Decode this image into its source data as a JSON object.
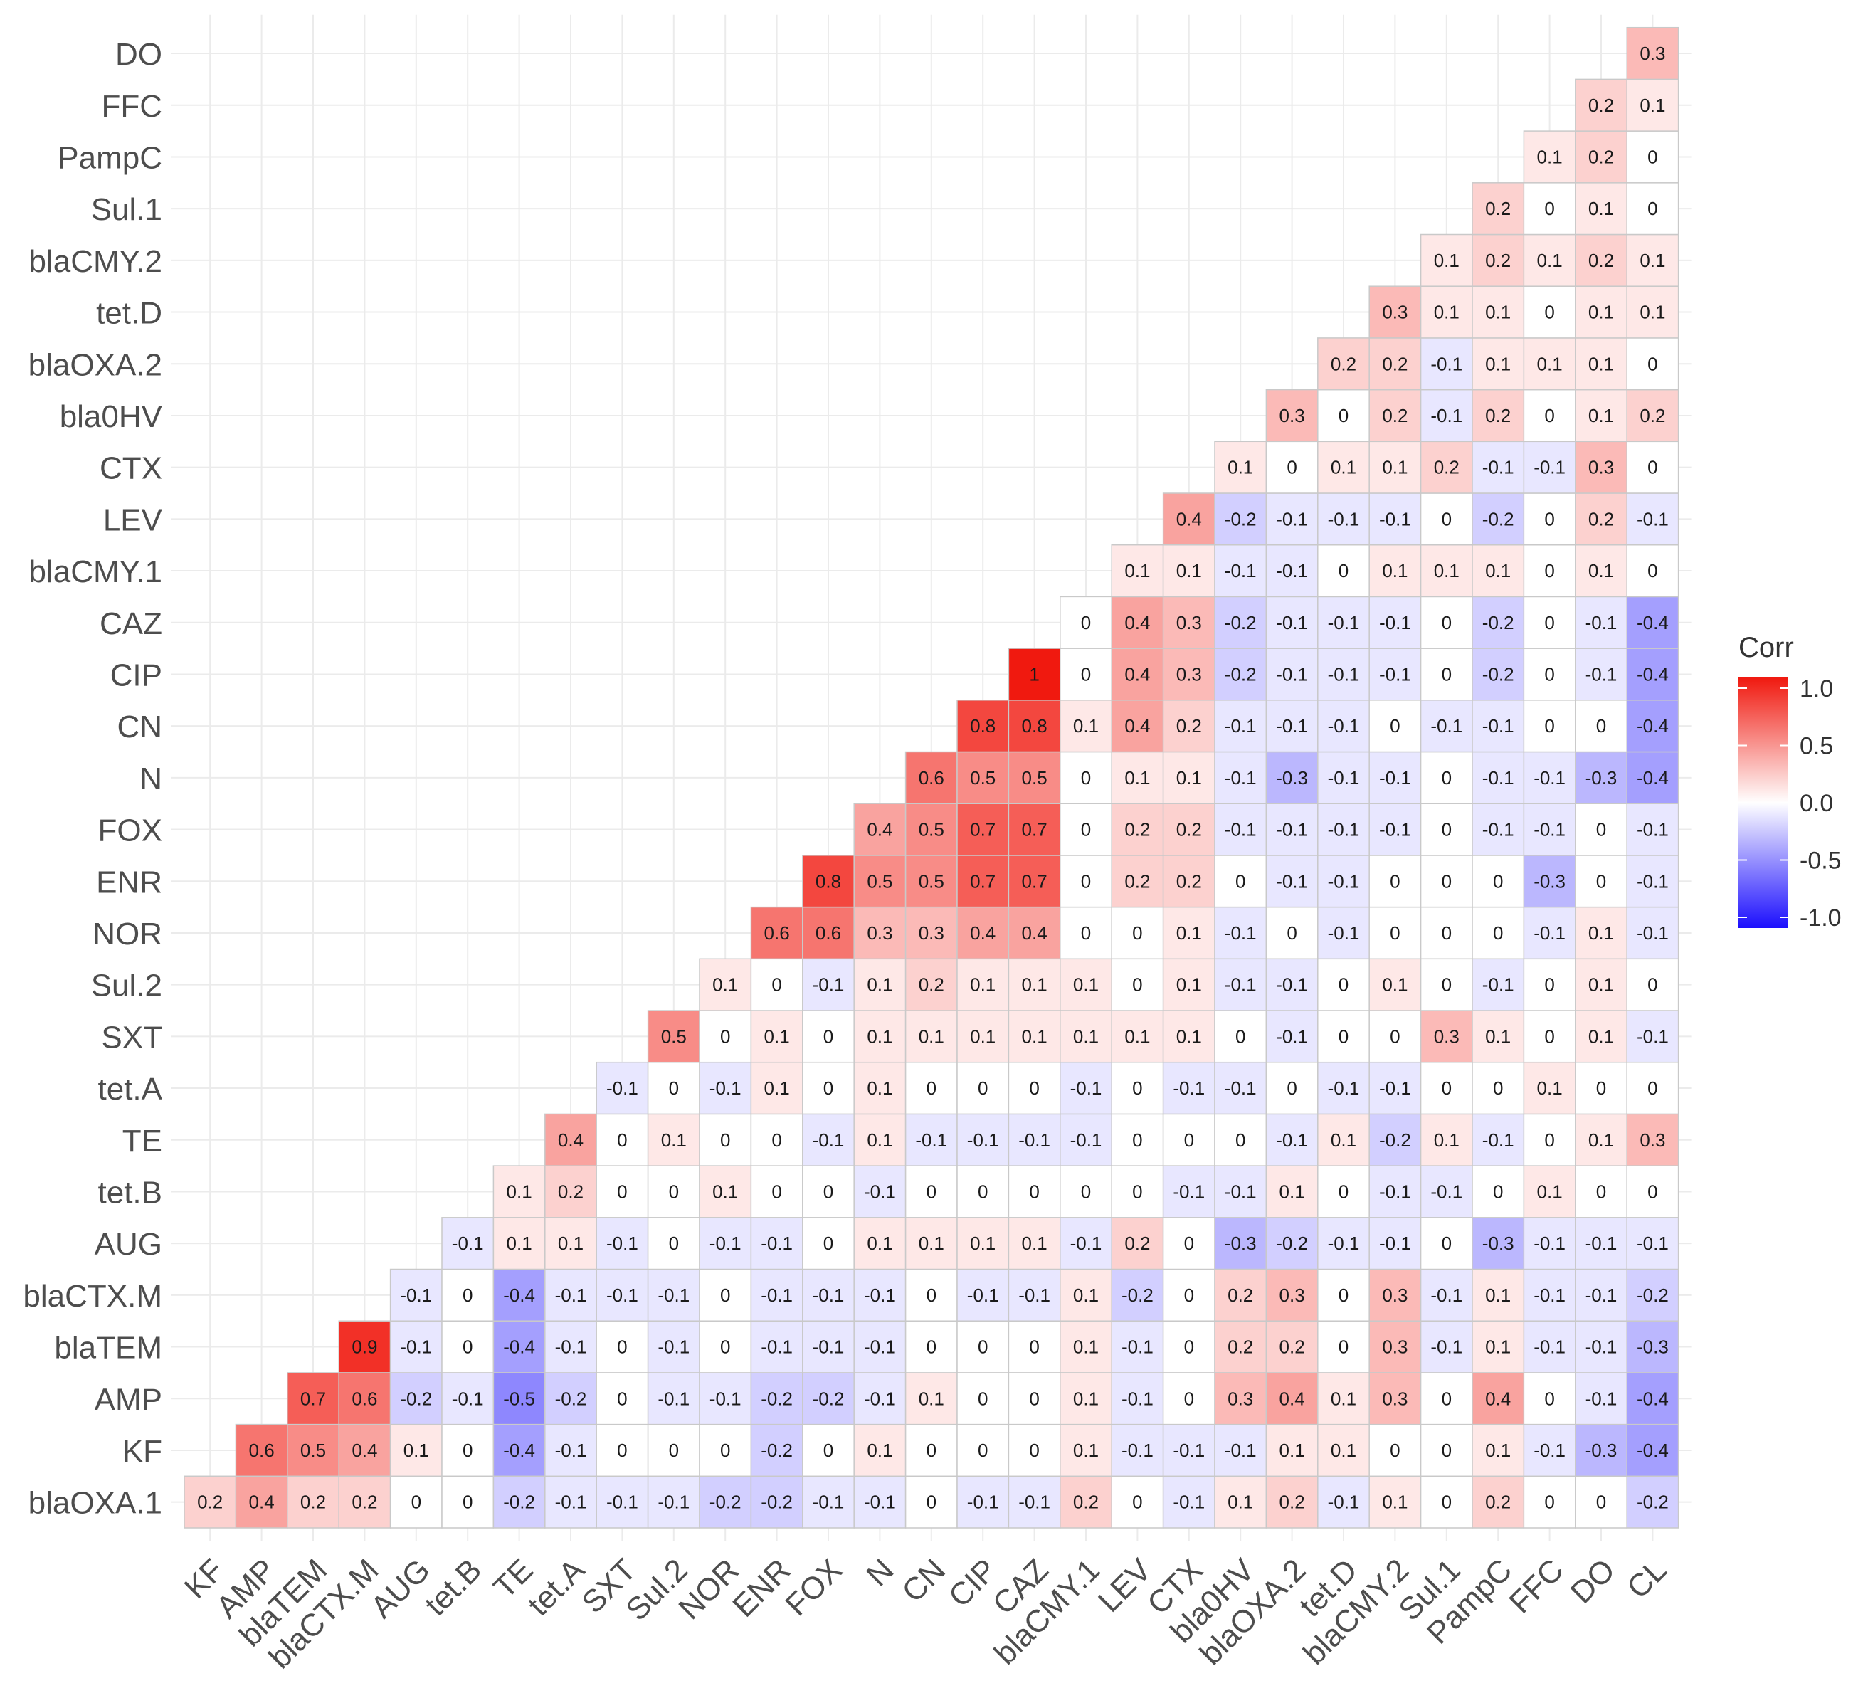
{
  "chart_data": {
    "type": "heatmap",
    "title": "",
    "xlabel": "",
    "ylabel": "",
    "x_labels": [
      "KF",
      "AMP",
      "blaTEM",
      "blaCTX.M",
      "AUG",
      "tet.B",
      "TE",
      "tet.A",
      "SXT",
      "Sul.2",
      "NOR",
      "ENR",
      "FOX",
      "N",
      "CN",
      "CIP",
      "CAZ",
      "blaCMY.1",
      "LEV",
      "CTX",
      "bla0HV",
      "blaOXA.2",
      "tet.D",
      "blaCMY.2",
      "Sul.1",
      "PampC",
      "FFC",
      "DO",
      "CL"
    ],
    "y_labels": [
      "blaOXA.1",
      "KF",
      "AMP",
      "blaTEM",
      "blaCTX.M",
      "AUG",
      "tet.B",
      "TE",
      "tet.A",
      "SXT",
      "Sul.2",
      "NOR",
      "ENR",
      "FOX",
      "N",
      "CN",
      "CIP",
      "CAZ",
      "blaCMY.1",
      "LEV",
      "CTX",
      "bla0HV",
      "blaOXA.2",
      "tet.D",
      "blaCMY.2",
      "Sul.1",
      "PampC",
      "FFC",
      "DO"
    ],
    "rows": [
      [
        "0.2",
        "0.4",
        "0.2",
        "0.2",
        "0",
        "0",
        "-0.2",
        "-0.1",
        "-0.1",
        "-0.1",
        "-0.2",
        "-0.2",
        "-0.1",
        "-0.1",
        "0",
        "-0.1",
        "-0.1",
        "0.2",
        "0",
        "-0.1",
        "0.1",
        "0.2",
        "-0.1",
        "0.1",
        "0",
        "0.2",
        "0",
        "0",
        "-0.2"
      ],
      [
        "0.6",
        "0.5",
        "0.4",
        "0.1",
        "0",
        "-0.4",
        "-0.1",
        "0",
        "0",
        "0",
        "-0.2",
        "0",
        "0.1",
        "0",
        "0",
        "0",
        "0.1",
        "-0.1",
        "-0.1",
        "-0.1",
        "0.1",
        "0.1",
        "0",
        "0",
        "0.1",
        "-0.1",
        "-0.3",
        "-0.4"
      ],
      [
        "0.7",
        "0.6",
        "-0.2",
        "-0.1",
        "-0.5",
        "-0.2",
        "0",
        "-0.1",
        "-0.1",
        "-0.2",
        "-0.2",
        "-0.1",
        "0.1",
        "0",
        "0",
        "0.1",
        "-0.1",
        "0",
        "0.3",
        "0.4",
        "0.1",
        "0.3",
        "0",
        "0.4",
        "0",
        "-0.1",
        "-0.4"
      ],
      [
        "0.9",
        "-0.1",
        "0",
        "-0.4",
        "-0.1",
        "0",
        "-0.1",
        "0",
        "-0.1",
        "-0.1",
        "-0.1",
        "0",
        "0",
        "0",
        "0.1",
        "-0.1",
        "0",
        "0.2",
        "0.2",
        "0",
        "0.3",
        "-0.1",
        "0.1",
        "-0.1",
        "-0.1",
        "-0.3"
      ],
      [
        "-0.1",
        "0",
        "-0.4",
        "-0.1",
        "-0.1",
        "-0.1",
        "0",
        "-0.1",
        "-0.1",
        "-0.1",
        "0",
        "-0.1",
        "-0.1",
        "0.1",
        "-0.2",
        "0",
        "0.2",
        "0.3",
        "0",
        "0.3",
        "-0.1",
        "0.1",
        "-0.1",
        "-0.1",
        "-0.2"
      ],
      [
        "-0.1",
        "0.1",
        "0.1",
        "-0.1",
        "0",
        "-0.1",
        "-0.1",
        "0",
        "0.1",
        "0.1",
        "0.1",
        "0.1",
        "-0.1",
        "0.2",
        "0",
        "-0.3",
        "-0.2",
        "-0.1",
        "-0.1",
        "0",
        "-0.3",
        "-0.1",
        "-0.1",
        "-0.1"
      ],
      [
        "0.1",
        "0.2",
        "0",
        "0",
        "0.1",
        "0",
        "0",
        "-0.1",
        "0",
        "0",
        "0",
        "0",
        "0",
        "-0.1",
        "-0.1",
        "0.1",
        "0",
        "-0.1",
        "-0.1",
        "0",
        "0.1",
        "0",
        "0"
      ],
      [
        "0.4",
        "0",
        "0.1",
        "0",
        "0",
        "-0.1",
        "0.1",
        "-0.1",
        "-0.1",
        "-0.1",
        "-0.1",
        "0",
        "0",
        "0",
        "-0.1",
        "0.1",
        "-0.2",
        "0.1",
        "-0.1",
        "0",
        "0.1",
        "0.3"
      ],
      [
        "-0.1",
        "0",
        "-0.1",
        "0.1",
        "0",
        "0.1",
        "0",
        "0",
        "0",
        "-0.1",
        "0",
        "-0.1",
        "-0.1",
        "0",
        "-0.1",
        "-0.1",
        "0",
        "0",
        "0.1",
        "0",
        "0"
      ],
      [
        "0.5",
        "0",
        "0.1",
        "0",
        "0.1",
        "0.1",
        "0.1",
        "0.1",
        "0.1",
        "0.1",
        "0.1",
        "0",
        "-0.1",
        "0",
        "0",
        "0.3",
        "0.1",
        "0",
        "0.1",
        "-0.1"
      ],
      [
        "0.1",
        "0",
        "-0.1",
        "0.1",
        "0.2",
        "0.1",
        "0.1",
        "0.1",
        "0",
        "0.1",
        "-0.1",
        "-0.1",
        "0",
        "0.1",
        "0",
        "-0.1",
        "0",
        "0.1",
        "0"
      ],
      [
        "0.6",
        "0.6",
        "0.3",
        "0.3",
        "0.4",
        "0.4",
        "0",
        "0",
        "0.1",
        "-0.1",
        "0",
        "-0.1",
        "0",
        "0",
        "0",
        "-0.1",
        "0.1",
        "-0.1"
      ],
      [
        "0.8",
        "0.5",
        "0.5",
        "0.7",
        "0.7",
        "0",
        "0.2",
        "0.2",
        "0",
        "-0.1",
        "-0.1",
        "0",
        "0",
        "0",
        "-0.3",
        "0",
        "-0.1"
      ],
      [
        "0.4",
        "0.5",
        "0.7",
        "0.7",
        "0",
        "0.2",
        "0.2",
        "-0.1",
        "-0.1",
        "-0.1",
        "-0.1",
        "0",
        "-0.1",
        "-0.1",
        "0",
        "-0.1"
      ],
      [
        "0.6",
        "0.5",
        "0.5",
        "0",
        "0.1",
        "0.1",
        "-0.1",
        "-0.3",
        "-0.1",
        "-0.1",
        "0",
        "-0.1",
        "-0.1",
        "-0.3",
        "-0.4"
      ],
      [
        "0.8",
        "0.8",
        "0.1",
        "0.4",
        "0.2",
        "-0.1",
        "-0.1",
        "-0.1",
        "0",
        "-0.1",
        "-0.1",
        "0",
        "0",
        "-0.4"
      ],
      [
        "1",
        "0",
        "0.4",
        "0.3",
        "-0.2",
        "-0.1",
        "-0.1",
        "-0.1",
        "0",
        "-0.2",
        "0",
        "-0.1",
        "-0.4"
      ],
      [
        "0",
        "0.4",
        "0.3",
        "-0.2",
        "-0.1",
        "-0.1",
        "-0.1",
        "0",
        "-0.2",
        "0",
        "-0.1",
        "-0.4"
      ],
      [
        "0.1",
        "0.1",
        "-0.1",
        "-0.1",
        "0",
        "0.1",
        "0.1",
        "0.1",
        "0",
        "0.1",
        "0"
      ],
      [
        "0.4",
        "-0.2",
        "-0.1",
        "-0.1",
        "-0.1",
        "0",
        "-0.2",
        "0",
        "0.2",
        "-0.1"
      ],
      [
        "0.1",
        "0",
        "0.1",
        "0.1",
        "0.2",
        "-0.1",
        "-0.1",
        "0.3",
        "0"
      ],
      [
        "0.3",
        "0",
        "0.2",
        "-0.1",
        "0.2",
        "0",
        "0.1",
        "0.2"
      ],
      [
        "0.2",
        "0.2",
        "-0.1",
        "0.1",
        "0.1",
        "0.1",
        "0"
      ],
      [
        "0.3",
        "0.1",
        "0.1",
        "0",
        "0.1",
        "0.1"
      ],
      [
        "0.1",
        "0.2",
        "0.1",
        "0.2",
        "0.1"
      ],
      [
        "0.2",
        "0",
        "0.1",
        "0"
      ],
      [
        "0.1",
        "0.2",
        "0"
      ],
      [
        "0.2",
        "0.1"
      ],
      [
        "0.3"
      ]
    ],
    "scale_range": [
      -1,
      1
    ],
    "legend": {
      "title": "Corr",
      "placement": "right",
      "ticks": [
        "1.0",
        "0.5",
        "0.0",
        "-0.5",
        "-1.0"
      ],
      "low_color": "#1c0ffd",
      "mid_color": "#ffffff",
      "high_color": "#f0190f"
    },
    "grid": true
  }
}
